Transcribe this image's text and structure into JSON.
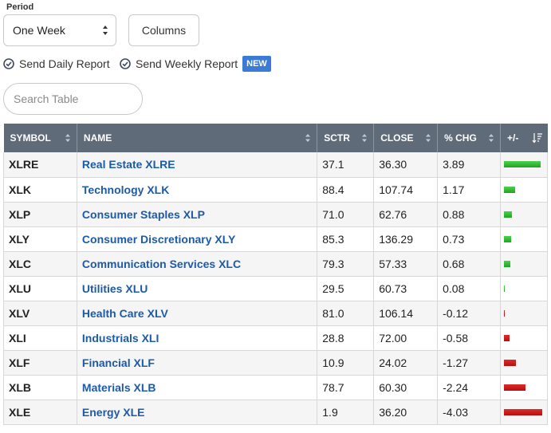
{
  "controls": {
    "period_label": "Period",
    "period_value": "One Week",
    "columns_label": "Columns",
    "daily_report_label": "Send Daily Report",
    "weekly_report_label": "Send Weekly Report",
    "new_badge": "NEW",
    "search_placeholder": "Search Table"
  },
  "colors": {
    "header_bg": "#5f6b78",
    "link": "#1d5aa8",
    "positive": "#2cb52c",
    "negative": "#cc1a1a",
    "badge": "#3a7bd5"
  },
  "table": {
    "columns": [
      "SYMBOL",
      "NAME",
      "SCTR",
      "CLOSE",
      "% CHG",
      "+/-"
    ],
    "max_abs_change": 4.03,
    "rows": [
      {
        "symbol": "XLRE",
        "name": "Real Estate XLRE",
        "sctr": "37.1",
        "close": "36.30",
        "pct_chg": "3.89",
        "change": 3.89
      },
      {
        "symbol": "XLK",
        "name": "Technology XLK",
        "sctr": "88.4",
        "close": "107.74",
        "pct_chg": "1.17",
        "change": 1.17
      },
      {
        "symbol": "XLP",
        "name": "Consumer Staples XLP",
        "sctr": "71.0",
        "close": "62.76",
        "pct_chg": "0.88",
        "change": 0.88
      },
      {
        "symbol": "XLY",
        "name": "Consumer Discretionary XLY",
        "sctr": "85.3",
        "close": "136.29",
        "pct_chg": "0.73",
        "change": 0.73
      },
      {
        "symbol": "XLC",
        "name": "Communication Services XLC",
        "sctr": "79.3",
        "close": "57.33",
        "pct_chg": "0.68",
        "change": 0.68
      },
      {
        "symbol": "XLU",
        "name": "Utilities XLU",
        "sctr": "29.5",
        "close": "60.73",
        "pct_chg": "0.08",
        "change": 0.08
      },
      {
        "symbol": "XLV",
        "name": "Health Care XLV",
        "sctr": "81.0",
        "close": "106.14",
        "pct_chg": "-0.12",
        "change": -0.12
      },
      {
        "symbol": "XLI",
        "name": "Industrials XLI",
        "sctr": "28.8",
        "close": "72.00",
        "pct_chg": "-0.58",
        "change": -0.58
      },
      {
        "symbol": "XLF",
        "name": "Financial XLF",
        "sctr": "10.9",
        "close": "24.02",
        "pct_chg": "-1.27",
        "change": -1.27
      },
      {
        "symbol": "XLB",
        "name": "Materials XLB",
        "sctr": "78.7",
        "close": "60.30",
        "pct_chg": "-2.24",
        "change": -2.24
      },
      {
        "symbol": "XLE",
        "name": "Energy XLE",
        "sctr": "1.9",
        "close": "36.20",
        "pct_chg": "-4.03",
        "change": -4.03
      }
    ]
  }
}
